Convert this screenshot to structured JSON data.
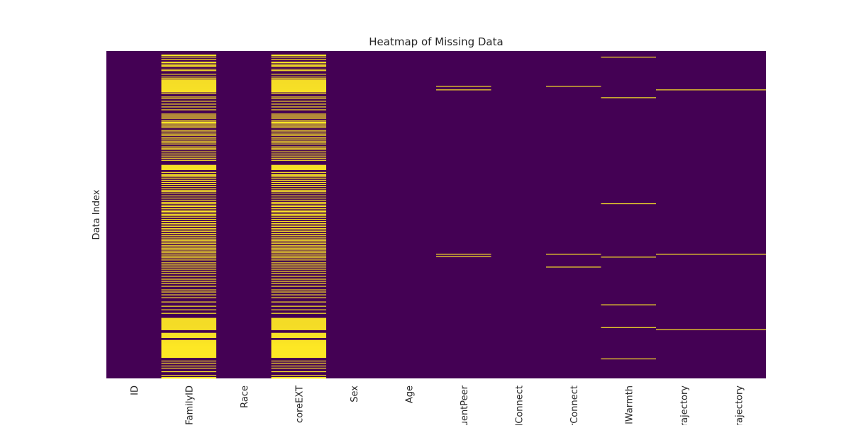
{
  "chart_data": {
    "type": "heatmap",
    "title": "Heatmap of Missing Data",
    "ylabel": "Data Index",
    "xlabel": "",
    "x_tick_labels": [
      "ID",
      "FamilyID",
      "Race",
      "coreEXT",
      "Sex",
      "Age",
      "uentPeer",
      "lConnect",
      "rConnect",
      "lWarmth",
      "Trajectory",
      "Trajectory"
    ],
    "y_tick_labels": [],
    "value_meaning": {
      "0": "present",
      "1": "missing"
    },
    "colors": {
      "present": "#440154",
      "missing": "#fde725"
    },
    "grid": false,
    "legend": "none",
    "n_rows": 460,
    "missing_row_indices": [
      [],
      [
        5,
        6,
        8,
        11,
        15,
        16,
        18,
        20,
        21,
        25,
        27,
        32,
        36,
        38,
        40,
        41,
        42,
        43,
        44,
        45,
        46,
        47,
        48,
        49,
        50,
        51,
        52,
        53,
        54,
        55,
        56,
        57,
        59,
        64,
        66,
        70,
        74,
        78,
        82,
        88,
        90,
        92,
        94,
        97,
        99,
        100,
        101,
        103,
        105,
        107,
        111,
        113,
        116,
        118,
        121,
        123,
        126,
        128,
        130,
        134,
        136,
        138,
        141,
        144,
        147,
        150,
        153,
        160,
        161,
        162,
        163,
        164,
        165,
        166,
        170,
        173,
        174,
        176,
        178,
        181,
        184,
        187,
        190,
        193,
        195,
        197,
        199,
        203,
        206,
        209,
        212,
        214,
        216,
        218,
        221,
        223,
        225,
        227,
        229,
        231,
        233,
        236,
        239,
        242,
        244,
        246,
        249,
        251,
        253,
        256,
        259,
        262,
        264,
        266,
        268,
        270,
        273,
        275,
        277,
        279,
        281,
        283,
        286,
        288,
        290,
        293,
        297,
        300,
        303,
        306,
        309,
        312,
        316,
        320,
        323,
        326,
        330,
        335,
        338,
        342,
        346,
        352,
        358,
        363,
        368,
        375,
        376,
        377,
        378,
        379,
        380,
        381,
        382,
        383,
        384,
        385,
        386,
        387,
        388,
        389,
        390,
        391,
        396,
        397,
        398,
        399,
        400,
        401,
        402,
        406,
        407,
        408,
        409,
        410,
        411,
        412,
        413,
        414,
        415,
        416,
        417,
        418,
        419,
        420,
        421,
        422,
        423,
        424,
        425,
        426,
        427,
        428,
        429,
        430,
        435,
        438,
        442,
        445,
        450,
        455,
        458,
        459
      ],
      [],
      [
        5,
        6,
        8,
        11,
        15,
        16,
        18,
        20,
        21,
        25,
        27,
        32,
        36,
        38,
        40,
        41,
        42,
        43,
        44,
        45,
        46,
        47,
        48,
        49,
        50,
        51,
        52,
        53,
        54,
        55,
        56,
        57,
        59,
        64,
        66,
        70,
        74,
        78,
        82,
        88,
        90,
        92,
        94,
        97,
        99,
        100,
        101,
        103,
        105,
        107,
        111,
        113,
        116,
        118,
        121,
        123,
        126,
        128,
        130,
        134,
        136,
        138,
        141,
        144,
        147,
        150,
        153,
        160,
        161,
        162,
        163,
        164,
        165,
        166,
        170,
        173,
        174,
        176,
        178,
        181,
        184,
        187,
        190,
        193,
        195,
        197,
        199,
        203,
        206,
        209,
        212,
        214,
        216,
        218,
        221,
        223,
        225,
        227,
        229,
        231,
        233,
        236,
        239,
        242,
        244,
        246,
        249,
        251,
        253,
        256,
        259,
        262,
        264,
        266,
        268,
        270,
        273,
        275,
        277,
        279,
        281,
        283,
        286,
        288,
        290,
        293,
        297,
        300,
        303,
        306,
        309,
        312,
        316,
        320,
        323,
        326,
        330,
        335,
        338,
        342,
        346,
        352,
        358,
        363,
        368,
        375,
        376,
        377,
        378,
        379,
        380,
        381,
        382,
        383,
        384,
        385,
        386,
        387,
        388,
        389,
        390,
        391,
        396,
        397,
        398,
        399,
        400,
        401,
        402,
        406,
        407,
        408,
        409,
        410,
        411,
        412,
        413,
        414,
        415,
        416,
        417,
        418,
        419,
        420,
        421,
        422,
        423,
        424,
        425,
        426,
        427,
        428,
        429,
        430,
        435,
        438,
        442,
        445,
        450,
        455,
        458,
        459
      ],
      [],
      [],
      [
        49,
        54,
        285,
        288
      ],
      [],
      [
        49,
        285,
        303
      ],
      [
        8,
        65,
        214,
        289,
        356,
        388,
        432
      ],
      [
        54,
        285,
        391
      ],
      [
        54,
        285,
        391
      ]
    ]
  }
}
